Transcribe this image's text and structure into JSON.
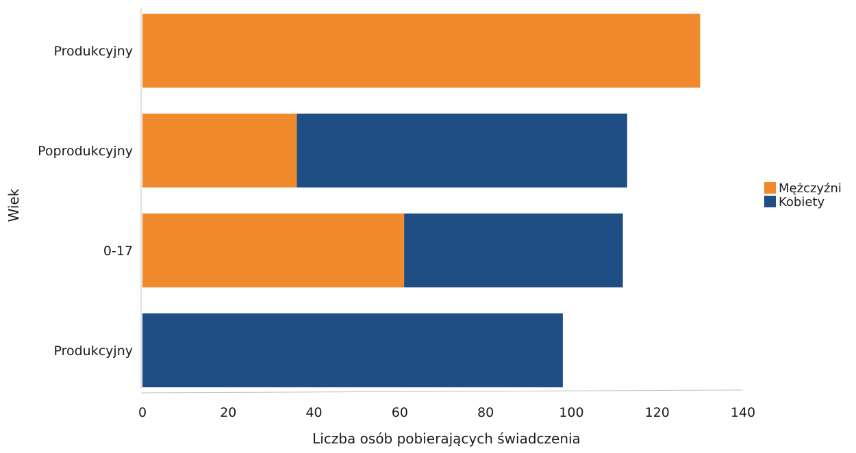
{
  "chart_data": {
    "type": "bar",
    "orientation": "horizontal",
    "stacked": true,
    "categories": [
      "Produkcyjny",
      "Poprodukcyjny",
      "0-17",
      "Produkcyjny"
    ],
    "series": [
      {
        "name": "Mężczyźni",
        "color": "#f08a2c",
        "values": [
          130,
          36,
          61,
          0
        ]
      },
      {
        "name": "Kobiety",
        "color": "#1f4e85",
        "values": [
          0,
          77,
          51,
          98
        ]
      }
    ],
    "xlabel": "Liczba osób pobierających świadczenia",
    "ylabel": "Wiek",
    "xlim": [
      0,
      140
    ],
    "xticks": [
      "0",
      "20",
      "40",
      "60",
      "80",
      "100",
      "120",
      "140"
    ],
    "grid": false,
    "legend_position": "right"
  }
}
